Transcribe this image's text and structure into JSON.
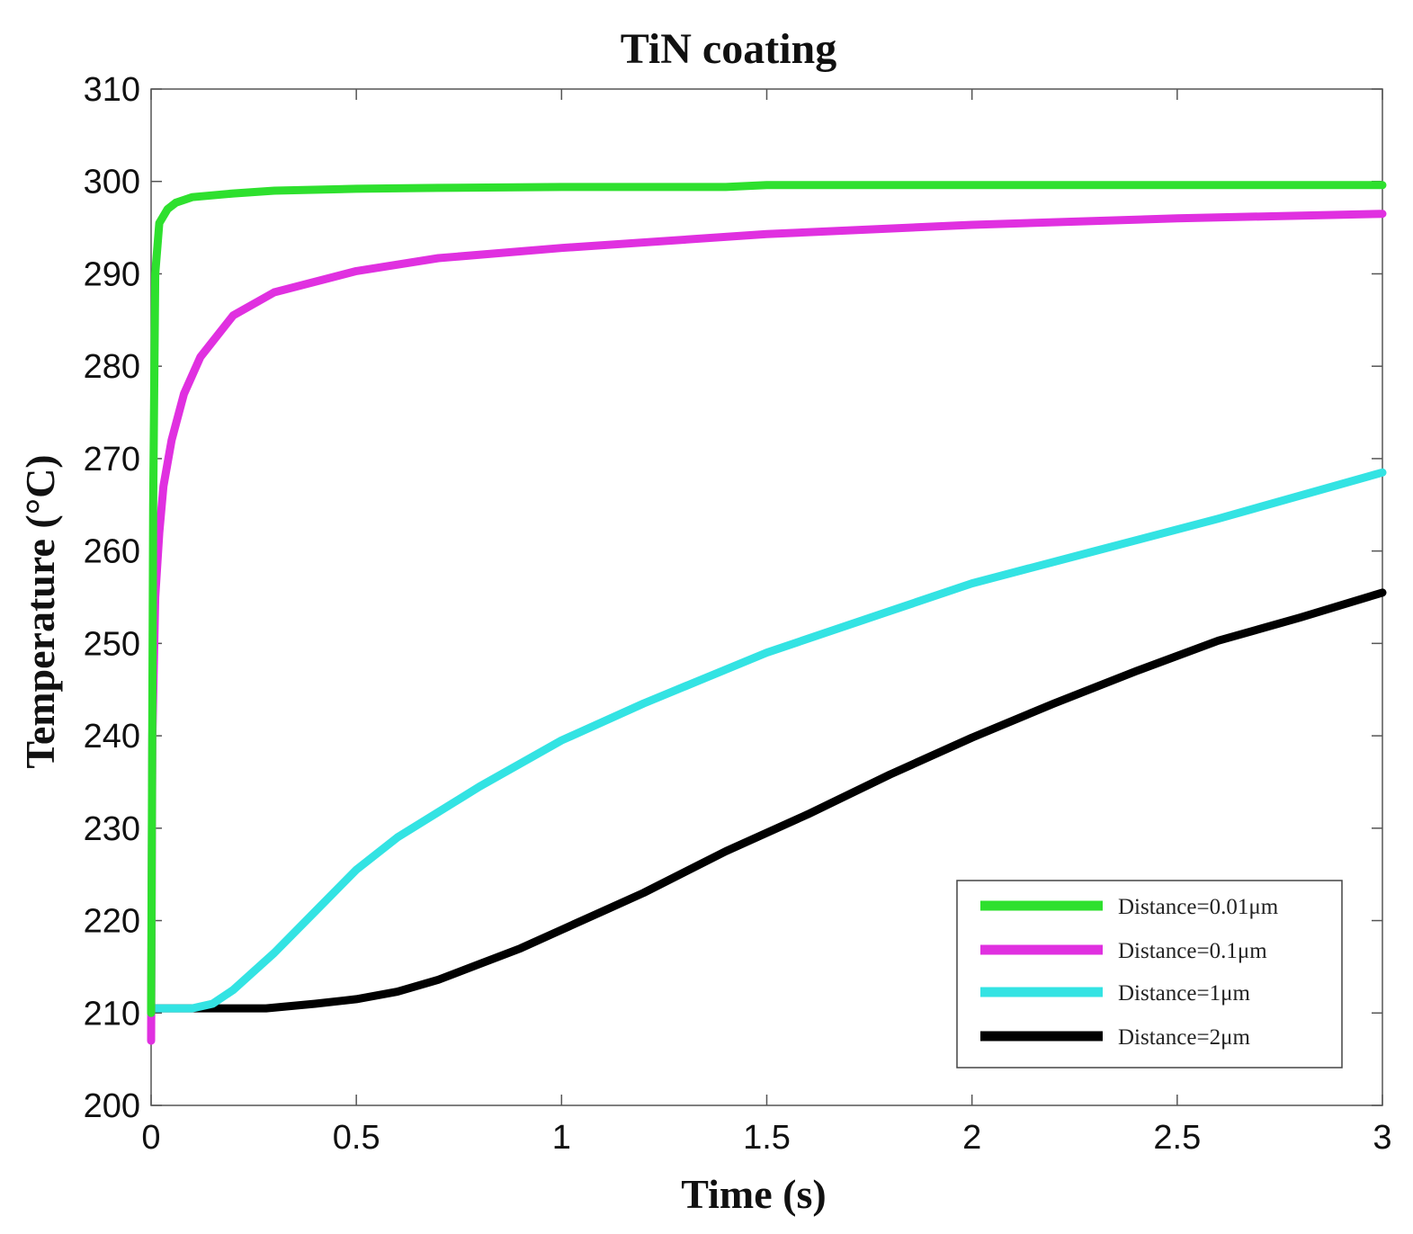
{
  "chart_data": {
    "type": "line",
    "title": "TiN coating",
    "xlabel": "Time (s)",
    "ylabel": "Temperature  (°C)",
    "xlim": [
      0,
      3
    ],
    "ylim": [
      200,
      310
    ],
    "xticks": [
      0,
      0.5,
      1,
      1.5,
      2,
      2.5,
      3
    ],
    "xtick_labels": [
      "0",
      "0.5",
      "1",
      "1.5",
      "2",
      "2.5",
      "3"
    ],
    "yticks": [
      200,
      210,
      220,
      230,
      240,
      250,
      260,
      270,
      280,
      290,
      300,
      310
    ],
    "ytick_labels": [
      "200",
      "210",
      "220",
      "230",
      "240",
      "250",
      "260",
      "270",
      "280",
      "290",
      "300",
      "310"
    ],
    "legend_position": "bottom-right",
    "grid": false,
    "series": [
      {
        "name": "Distance=0.01μm",
        "color": "#2ee02e",
        "x": [
          0,
          0.005,
          0.01,
          0.02,
          0.04,
          0.06,
          0.1,
          0.2,
          0.3,
          0.5,
          0.7,
          1.0,
          1.4,
          1.5,
          2.0,
          2.5,
          3.0
        ],
        "y": [
          210,
          265,
          290,
          295.5,
          297,
          297.7,
          298.3,
          298.7,
          299,
          299.2,
          299.3,
          299.4,
          299.4,
          299.6,
          299.6,
          299.6,
          299.6
        ]
      },
      {
        "name": "Distance=0.1μm",
        "color": "#e030e0",
        "x": [
          0,
          0.003,
          0.01,
          0.02,
          0.03,
          0.05,
          0.08,
          0.12,
          0.2,
          0.3,
          0.5,
          0.7,
          1.0,
          1.5,
          2.0,
          2.5,
          3.0
        ],
        "y": [
          207,
          240,
          255,
          262,
          267,
          272,
          277,
          281,
          285.5,
          288,
          290.3,
          291.7,
          292.8,
          294.3,
          295.3,
          296,
          296.5
        ]
      },
      {
        "name": "Distance=1μm",
        "color": "#33e3e3",
        "x": [
          0,
          0.1,
          0.15,
          0.2,
          0.3,
          0.4,
          0.5,
          0.6,
          0.8,
          1.0,
          1.2,
          1.5,
          1.8,
          2.0,
          2.3,
          2.6,
          3.0
        ],
        "y": [
          210.5,
          210.5,
          211,
          212.5,
          216.5,
          221,
          225.5,
          229,
          234.5,
          239.5,
          243.5,
          249,
          253.5,
          256.5,
          260,
          263.5,
          268.5
        ]
      },
      {
        "name": "Distance=2μm",
        "color": "#000000",
        "x": [
          0,
          0.28,
          0.4,
          0.5,
          0.6,
          0.7,
          0.8,
          0.9,
          1.0,
          1.2,
          1.4,
          1.6,
          1.8,
          2.0,
          2.2,
          2.4,
          2.6,
          2.8,
          3.0
        ],
        "y": [
          210.5,
          210.5,
          211,
          211.5,
          212.3,
          213.6,
          215.3,
          217,
          219,
          223,
          227.5,
          231.5,
          235.8,
          239.8,
          243.5,
          247,
          250.3,
          252.8,
          255.5
        ]
      }
    ]
  }
}
